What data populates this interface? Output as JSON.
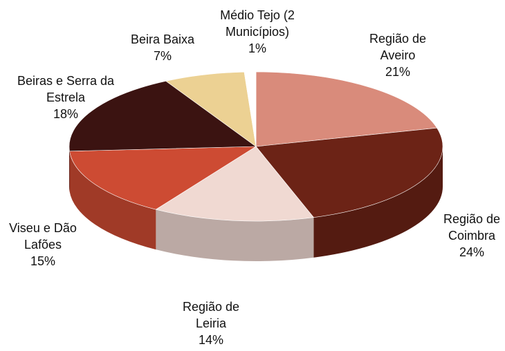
{
  "chart_data": {
    "type": "pie",
    "categories": [
      "Região de Aveiro",
      "Região de Coimbra",
      "Região de Leiria",
      "Viseu e Dão Lafões",
      "Beiras e Serra da Estrela",
      "Beira Baixa",
      "Médio Tejo (2 Municípios)"
    ],
    "values": [
      21,
      24,
      14,
      15,
      18,
      7,
      1
    ],
    "value_labels": [
      "21%",
      "24%",
      "14%",
      "15%",
      "18%",
      "7%",
      "1%"
    ],
    "colors": [
      "#d98b7b",
      "#6c2316",
      "#f0d9d2",
      "#cd4b33",
      "#3b1311",
      "#ecd193",
      "#ffffff"
    ]
  }
}
